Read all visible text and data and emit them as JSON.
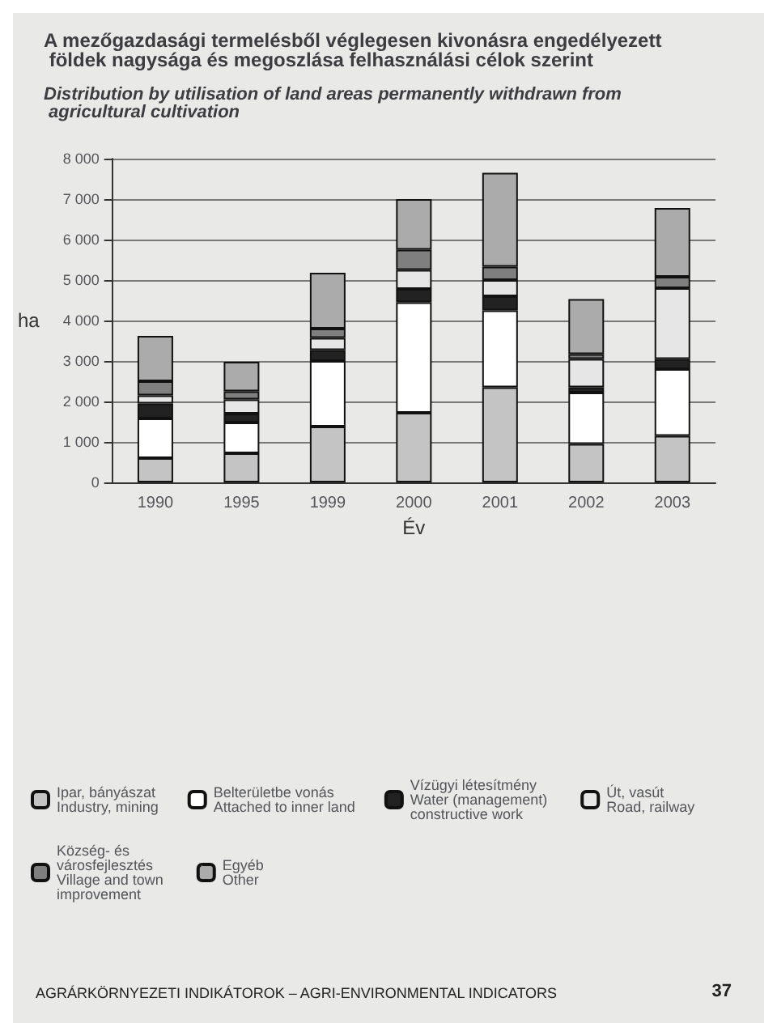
{
  "chart_data": {
    "type": "bar",
    "stacked": true,
    "title": "A mezőgazdasági termelésből véglegesen kivonásra engedélyezett földek nagysága és megoszlása felhasználási célok szerint",
    "subtitle": "Distribution by utilisation of land areas permanently withdrawn from agricultural cultivation",
    "xlabel": "Év",
    "ylabel": "ha",
    "categories": [
      "1990",
      "1995",
      "1999",
      "2000",
      "2001",
      "2002",
      "2003"
    ],
    "series": [
      {
        "name": "Ipar, bányászat\nIndustry, mining",
        "color": "#c4c4c4",
        "values": [
          600,
          720,
          1380,
          1720,
          2350,
          950,
          1150
        ]
      },
      {
        "name": "Belterületbe vonás\nAttached to inner land",
        "color": "#ffffff",
        "values": [
          980,
          760,
          1620,
          2730,
          1900,
          1270,
          1650
        ]
      },
      {
        "name": "Vízügyi létesítmény\nWater (management) constructive work",
        "color": "#222222",
        "values": [
          370,
          220,
          270,
          330,
          350,
          130,
          250
        ]
      },
      {
        "name": "Út, vasút\nRoad, railway",
        "color": "#e6e6e6",
        "values": [
          200,
          350,
          300,
          470,
          400,
          700,
          1750
        ]
      },
      {
        "name": "Község- és városfejlesztés\nVillage and town improvement",
        "color": "#7f7f7f",
        "values": [
          350,
          200,
          230,
          500,
          330,
          120,
          280
        ]
      },
      {
        "name": "Egyéb\nOther",
        "color": "#ababab",
        "values": [
          1120,
          730,
          1380,
          1250,
          2320,
          1360,
          1700
        ]
      }
    ],
    "ylim": [
      0,
      8000
    ],
    "yticks": [
      {
        "value": 0,
        "label": "0"
      },
      {
        "value": 1000,
        "label": "1 000"
      },
      {
        "value": 2000,
        "label": "2 000"
      },
      {
        "value": 3000,
        "label": "3 000"
      },
      {
        "value": 4000,
        "label": "4 000"
      },
      {
        "value": 5000,
        "label": "5 000"
      },
      {
        "value": 6000,
        "label": "6 000"
      },
      {
        "value": 7000,
        "label": "7 000"
      },
      {
        "value": 8000,
        "label": "8 000"
      }
    ],
    "grid": "y",
    "legend": "bottom",
    "annotations": [
      "AGRÁRKÖRNYEZETI INDIKÁTOROK – AGRI-ENVIRONMENTAL INDICATORS",
      "37"
    ]
  }
}
